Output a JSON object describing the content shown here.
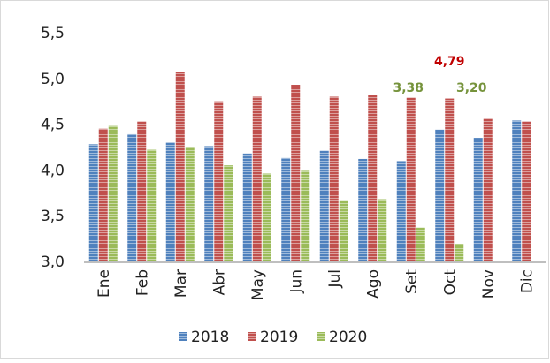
{
  "chart_data": {
    "type": "bar",
    "categories": [
      "Ene",
      "Feb",
      "Mar",
      "Abr",
      "May",
      "Jun",
      "Jul",
      "Ago",
      "Set",
      "Oct",
      "Nov",
      "Dic"
    ],
    "series": [
      {
        "name": "2018",
        "color": "#4f81bd",
        "values": [
          4.29,
          4.4,
          4.31,
          4.27,
          4.19,
          4.14,
          4.22,
          4.13,
          4.11,
          4.45,
          4.36,
          4.55
        ]
      },
      {
        "name": "2019",
        "color": "#c0504d",
        "values": [
          4.46,
          4.54,
          5.08,
          4.76,
          4.81,
          4.94,
          4.81,
          4.83,
          4.8,
          4.79,
          4.57,
          4.54
        ],
        "value_labels": [
          null,
          null,
          null,
          null,
          null,
          null,
          null,
          null,
          null,
          "4,79",
          null,
          null
        ],
        "label_color": "#c00000"
      },
      {
        "name": "2020",
        "color": "#9bbb59",
        "values": [
          4.49,
          4.23,
          4.26,
          4.06,
          3.97,
          4.0,
          3.67,
          3.69,
          3.38,
          3.2,
          null,
          null
        ],
        "value_labels": [
          null,
          null,
          null,
          null,
          null,
          null,
          null,
          null,
          "3,38",
          "3,20",
          null,
          null
        ],
        "label_color": "#76933c"
      }
    ],
    "ylim": [
      3.0,
      5.5
    ],
    "yticks": [
      {
        "value": 3.0,
        "label": "3,0"
      },
      {
        "value": 3.5,
        "label": "3,5"
      },
      {
        "value": 4.0,
        "label": "4,0"
      },
      {
        "value": 4.5,
        "label": "4,5"
      },
      {
        "value": 5.0,
        "label": "5,0"
      },
      {
        "value": 5.5,
        "label": "5,5"
      }
    ],
    "grid": false,
    "legend": "bottom"
  }
}
